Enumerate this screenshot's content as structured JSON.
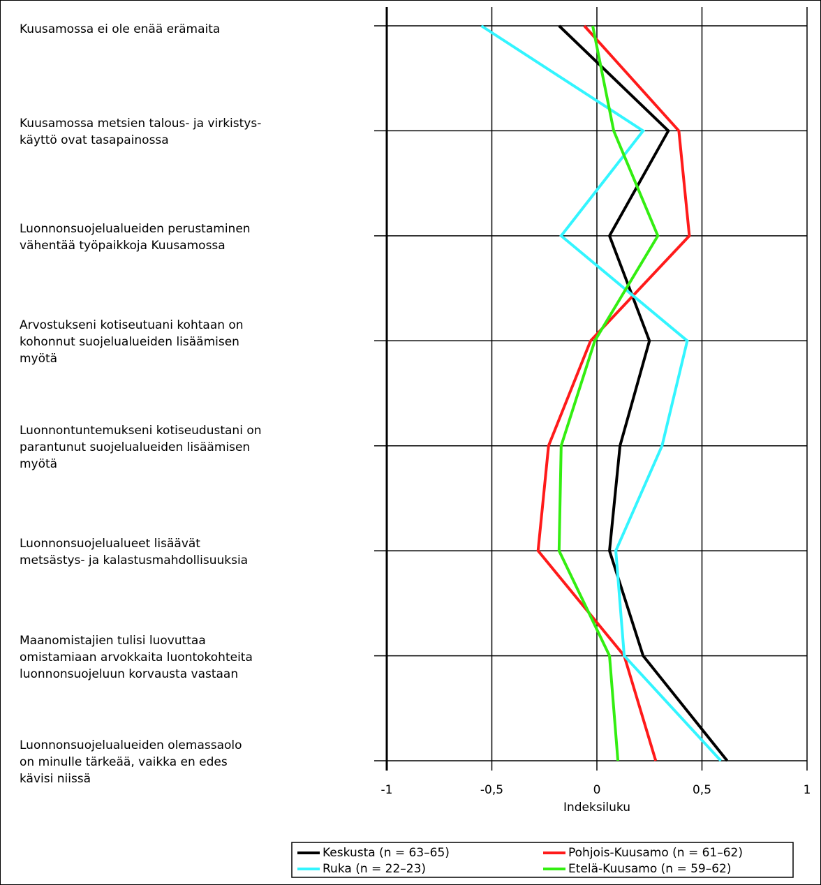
{
  "chart_data": {
    "type": "line",
    "orientation": "horizontal",
    "xlabel": "Indeksiluku",
    "categories": [
      "Kuusamossa ei ole enää erämaita",
      "Kuusamossa metsien talous- ja virkistys-\nkäyttö ovat tasapainossa",
      "Luonnonsuojelualueiden perustaminen\nvähentää työpaikkoja Kuusamossa",
      "Arvostukseni kotiseutuani kohtaan on\nkohonnut suojelualueiden lisäämisen\nmyötä",
      "Luonnontuntemukseni kotiseudustani on\nparantunut suojelualueiden lisäämisen\nmyötä",
      "Luonnonsuojelualueet lisäävät\nmetsästys- ja kalastusmahdollisuuksia",
      "Maanomistajien tulisi luovuttaa\nomistamiaan arvokkaita luontokohteita\nluonnonsuojeluun korvausta vastaan",
      "Luonnonsuojelualueiden olemassaolo\non minulle tärkeää, vaikka en edes\nkävisi niissä"
    ],
    "series": [
      {
        "name": "Keskusta (n = 63–65)",
        "color": "#000000",
        "values": [
          -0.18,
          0.34,
          0.06,
          0.25,
          0.11,
          0.06,
          0.22,
          0.62
        ]
      },
      {
        "name": "Pohjois-Kuusamo (n = 61–62)",
        "color": "#ff1a1a",
        "values": [
          -0.06,
          0.39,
          0.44,
          -0.03,
          -0.23,
          -0.28,
          0.13,
          0.28
        ]
      },
      {
        "name": "Ruka (n = 22–23)",
        "color": "#33f5ff",
        "values": [
          -0.55,
          0.22,
          -0.17,
          0.43,
          0.31,
          0.09,
          0.13,
          0.59
        ]
      },
      {
        "name": "Etelä-Kuusamo (n = 59–62)",
        "color": "#33ee11",
        "values": [
          -0.02,
          0.08,
          0.29,
          -0.01,
          -0.17,
          -0.18,
          0.06,
          0.1
        ]
      }
    ],
    "xlim": [
      -1,
      1
    ],
    "xticks": [
      -1,
      {
        "value": -0.5,
        "label": "-0,5"
      },
      0,
      {
        "value": 0.5,
        "label": "0,5"
      },
      1
    ],
    "grid": true,
    "legend": "bottom"
  }
}
